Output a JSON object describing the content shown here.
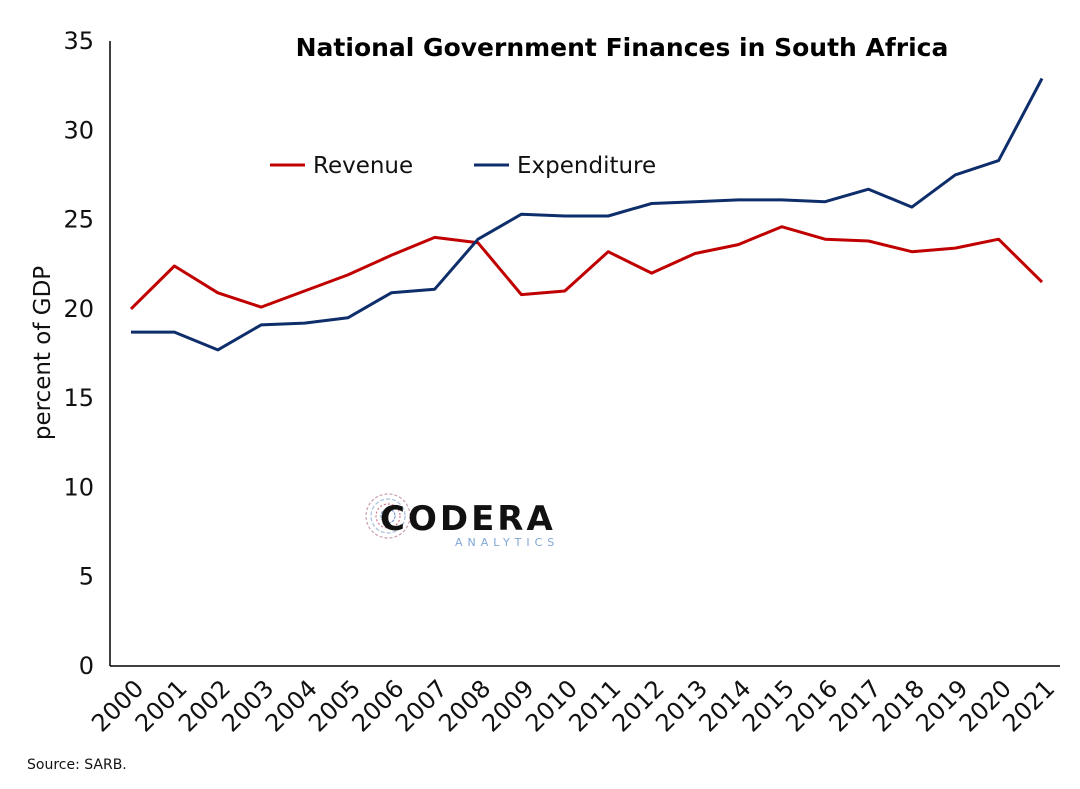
{
  "chart_data": {
    "type": "line",
    "title": "National Government Finances in South Africa",
    "ylabel": "percent of GDP",
    "ylim": [
      0,
      35
    ],
    "yticks": [
      "0",
      "5",
      "10",
      "15",
      "20",
      "25",
      "30",
      "35"
    ],
    "categories": [
      "2000",
      "2001",
      "2002",
      "2003",
      "2004",
      "2005",
      "2006",
      "2007",
      "2008",
      "2009",
      "2010",
      "2011",
      "2012",
      "2013",
      "2014",
      "2015",
      "2016",
      "2017",
      "2018",
      "2019",
      "2020",
      "2021"
    ],
    "series": [
      {
        "name": "Revenue",
        "color": "#c00000",
        "values": [
          20.0,
          22.4,
          20.9,
          20.1,
          21.0,
          21.9,
          23.0,
          24.0,
          23.7,
          20.8,
          21.0,
          23.2,
          22.0,
          23.1,
          23.6,
          24.6,
          23.9,
          23.8,
          23.2,
          23.4,
          23.9,
          21.5
        ]
      },
      {
        "name": "Expenditure",
        "color": "#0e2e6b",
        "values": [
          18.7,
          18.7,
          17.7,
          19.1,
          19.2,
          19.5,
          20.9,
          21.1,
          23.9,
          25.3,
          25.2,
          25.2,
          25.9,
          26.0,
          26.1,
          26.1,
          26.0,
          26.7,
          25.7,
          27.5,
          28.3,
          32.9
        ]
      }
    ],
    "legend_position": "top-left",
    "grid": false
  },
  "logo": {
    "name": "CODERA",
    "tagline": "ANALYTICS"
  },
  "source": "Source: SARB."
}
